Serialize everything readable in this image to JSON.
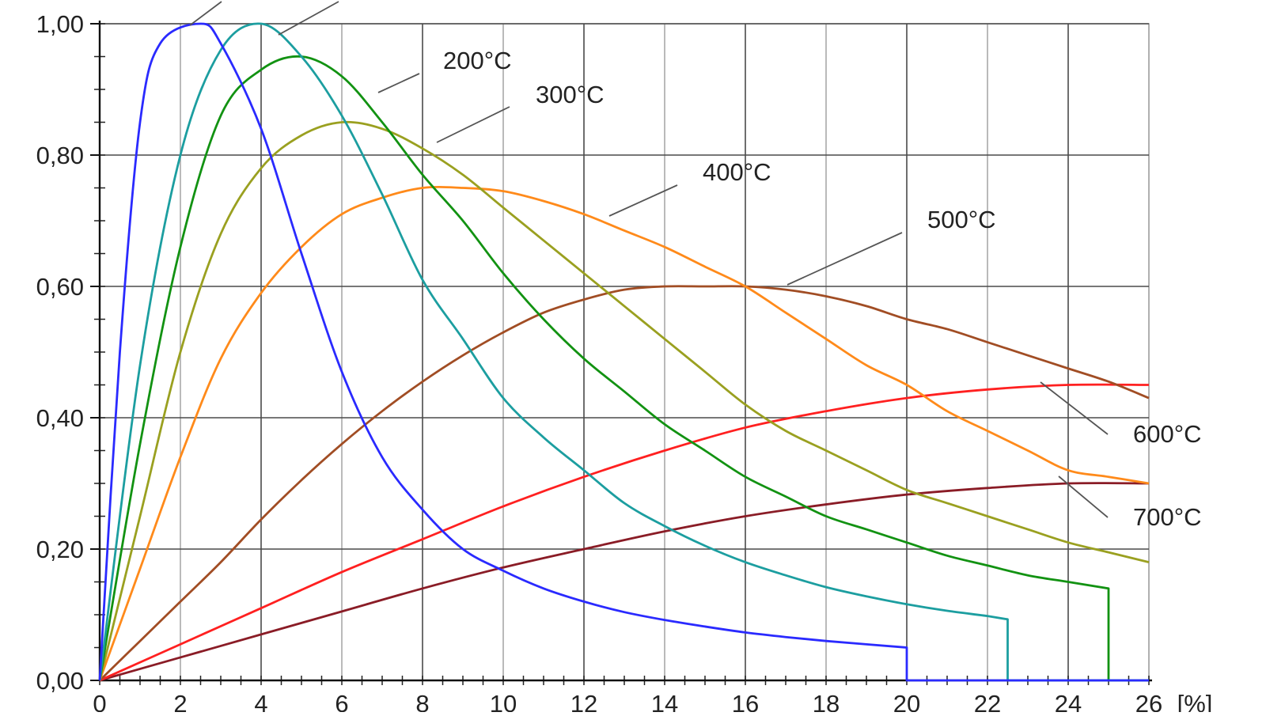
{
  "chart_data": {
    "type": "line",
    "title": "",
    "xlabel": "[%]",
    "ylabel": "",
    "xlim": [
      0,
      26
    ],
    "ylim": [
      0,
      1
    ],
    "grid": true,
    "x_ticks": [
      0,
      2,
      4,
      6,
      8,
      10,
      12,
      14,
      16,
      18,
      20,
      22,
      24,
      26
    ],
    "x_tick_labels": [
      "0",
      "2",
      "4",
      "6",
      "8",
      "10",
      "12",
      "14",
      "16",
      "18",
      "20",
      "22",
      "24",
      "26"
    ],
    "y_ticks": [
      0,
      0.2,
      0.4,
      0.6,
      0.8,
      1.0
    ],
    "y_tick_labels": [
      "0,00",
      "0,20",
      "0,40",
      "0,60",
      "0,80",
      "1,00"
    ],
    "series": [
      {
        "name": "",
        "color": "#2a2aff",
        "points": [
          [
            0,
            0
          ],
          [
            0.5,
            0.5
          ],
          [
            1,
            0.85
          ],
          [
            1.5,
            0.97
          ],
          [
            2.5,
            1.0
          ],
          [
            3,
            0.97
          ],
          [
            4,
            0.84
          ],
          [
            5,
            0.65
          ],
          [
            6,
            0.47
          ],
          [
            7,
            0.34
          ],
          [
            8,
            0.26
          ],
          [
            9,
            0.2
          ],
          [
            10,
            0.167
          ],
          [
            11,
            0.14
          ],
          [
            12,
            0.12
          ],
          [
            13,
            0.104
          ],
          [
            14,
            0.092
          ],
          [
            15,
            0.082
          ],
          [
            16,
            0.073
          ],
          [
            17,
            0.066
          ],
          [
            18,
            0.06
          ],
          [
            19,
            0.055
          ],
          [
            20,
            0.05
          ],
          [
            20,
            0
          ],
          [
            26,
            0
          ]
        ]
      },
      {
        "name": "",
        "color": "#1c9ea0",
        "points": [
          [
            0,
            0
          ],
          [
            1,
            0.48
          ],
          [
            2,
            0.8
          ],
          [
            3,
            0.96
          ],
          [
            4,
            1.0
          ],
          [
            5,
            0.95
          ],
          [
            6,
            0.86
          ],
          [
            7,
            0.74
          ],
          [
            8,
            0.61
          ],
          [
            9,
            0.52
          ],
          [
            10,
            0.43
          ],
          [
            11,
            0.37
          ],
          [
            12,
            0.32
          ],
          [
            13,
            0.27
          ],
          [
            14,
            0.235
          ],
          [
            15,
            0.205
          ],
          [
            16,
            0.18
          ],
          [
            17,
            0.16
          ],
          [
            18,
            0.142
          ],
          [
            19,
            0.128
          ],
          [
            20,
            0.116
          ],
          [
            21,
            0.106
          ],
          [
            22,
            0.098
          ],
          [
            22.5,
            0.093
          ],
          [
            22.5,
            0
          ],
          [
            26,
            0
          ]
        ]
      },
      {
        "name": "200°C",
        "color": "#129212",
        "points": [
          [
            0,
            0
          ],
          [
            1,
            0.36
          ],
          [
            2,
            0.66
          ],
          [
            3,
            0.86
          ],
          [
            4,
            0.93
          ],
          [
            5,
            0.95
          ],
          [
            6,
            0.92
          ],
          [
            7,
            0.85
          ],
          [
            8,
            0.77
          ],
          [
            9,
            0.7
          ],
          [
            10,
            0.62
          ],
          [
            11,
            0.55
          ],
          [
            12,
            0.49
          ],
          [
            13,
            0.44
          ],
          [
            14,
            0.39
          ],
          [
            15,
            0.35
          ],
          [
            16,
            0.31
          ],
          [
            17,
            0.28
          ],
          [
            18,
            0.25
          ],
          [
            19,
            0.23
          ],
          [
            20,
            0.21
          ],
          [
            21,
            0.19
          ],
          [
            22,
            0.175
          ],
          [
            23,
            0.16
          ],
          [
            24,
            0.15
          ],
          [
            25,
            0.14
          ],
          [
            25,
            0
          ],
          [
            26,
            0
          ]
        ]
      },
      {
        "name": "300°C",
        "color": "#9aa020",
        "points": [
          [
            0,
            0
          ],
          [
            1,
            0.25
          ],
          [
            2,
            0.5
          ],
          [
            3,
            0.68
          ],
          [
            4,
            0.78
          ],
          [
            5,
            0.83
          ],
          [
            6,
            0.85
          ],
          [
            7,
            0.84
          ],
          [
            8,
            0.81
          ],
          [
            9,
            0.77
          ],
          [
            10,
            0.72
          ],
          [
            11,
            0.67
          ],
          [
            12,
            0.62
          ],
          [
            13,
            0.57
          ],
          [
            14,
            0.52
          ],
          [
            15,
            0.47
          ],
          [
            16,
            0.42
          ],
          [
            17,
            0.38
          ],
          [
            18,
            0.35
          ],
          [
            19,
            0.32
          ],
          [
            20,
            0.29
          ],
          [
            21,
            0.27
          ],
          [
            22,
            0.25
          ],
          [
            23,
            0.23
          ],
          [
            24,
            0.21
          ],
          [
            25,
            0.195
          ],
          [
            26,
            0.18
          ]
        ]
      },
      {
        "name": "400°C",
        "color": "#ff8a1a",
        "points": [
          [
            0,
            0
          ],
          [
            1,
            0.17
          ],
          [
            2,
            0.34
          ],
          [
            3,
            0.49
          ],
          [
            4,
            0.59
          ],
          [
            5,
            0.66
          ],
          [
            6,
            0.71
          ],
          [
            7,
            0.735
          ],
          [
            8,
            0.75
          ],
          [
            9,
            0.75
          ],
          [
            10,
            0.745
          ],
          [
            11,
            0.73
          ],
          [
            12,
            0.71
          ],
          [
            13,
            0.685
          ],
          [
            14,
            0.66
          ],
          [
            15,
            0.63
          ],
          [
            16,
            0.6
          ],
          [
            17,
            0.56
          ],
          [
            18,
            0.52
          ],
          [
            19,
            0.48
          ],
          [
            20,
            0.45
          ],
          [
            21,
            0.41
          ],
          [
            22,
            0.38
          ],
          [
            23,
            0.35
          ],
          [
            24,
            0.32
          ],
          [
            25,
            0.31
          ],
          [
            26,
            0.3
          ]
        ]
      },
      {
        "name": "500°C",
        "color": "#a14d24",
        "points": [
          [
            0,
            0
          ],
          [
            1,
            0.06
          ],
          [
            2,
            0.12
          ],
          [
            3,
            0.18
          ],
          [
            4,
            0.245
          ],
          [
            5,
            0.305
          ],
          [
            6,
            0.36
          ],
          [
            7,
            0.41
          ],
          [
            8,
            0.455
          ],
          [
            9,
            0.495
          ],
          [
            10,
            0.53
          ],
          [
            11,
            0.56
          ],
          [
            12,
            0.58
          ],
          [
            13,
            0.595
          ],
          [
            14,
            0.6
          ],
          [
            15,
            0.6
          ],
          [
            16,
            0.6
          ],
          [
            17,
            0.595
          ],
          [
            18,
            0.585
          ],
          [
            19,
            0.57
          ],
          [
            20,
            0.55
          ],
          [
            21,
            0.535
          ],
          [
            22,
            0.515
          ],
          [
            23,
            0.495
          ],
          [
            24,
            0.475
          ],
          [
            25,
            0.455
          ],
          [
            26,
            0.43
          ]
        ]
      },
      {
        "name": "600°C",
        "color": "#ff2020",
        "points": [
          [
            0,
            0
          ],
          [
            2,
            0.055
          ],
          [
            4,
            0.11
          ],
          [
            6,
            0.165
          ],
          [
            8,
            0.215
          ],
          [
            10,
            0.265
          ],
          [
            12,
            0.31
          ],
          [
            14,
            0.35
          ],
          [
            16,
            0.385
          ],
          [
            18,
            0.41
          ],
          [
            20,
            0.43
          ],
          [
            22,
            0.443
          ],
          [
            24,
            0.45
          ],
          [
            26,
            0.45
          ]
        ]
      },
      {
        "name": "700°C",
        "color": "#8a1c26",
        "points": [
          [
            0,
            0
          ],
          [
            2,
            0.035
          ],
          [
            4,
            0.07
          ],
          [
            6,
            0.105
          ],
          [
            8,
            0.14
          ],
          [
            10,
            0.172
          ],
          [
            12,
            0.2
          ],
          [
            14,
            0.227
          ],
          [
            16,
            0.25
          ],
          [
            18,
            0.268
          ],
          [
            20,
            0.283
          ],
          [
            22,
            0.293
          ],
          [
            24,
            0.3
          ],
          [
            26,
            0.3
          ]
        ]
      }
    ]
  }
}
